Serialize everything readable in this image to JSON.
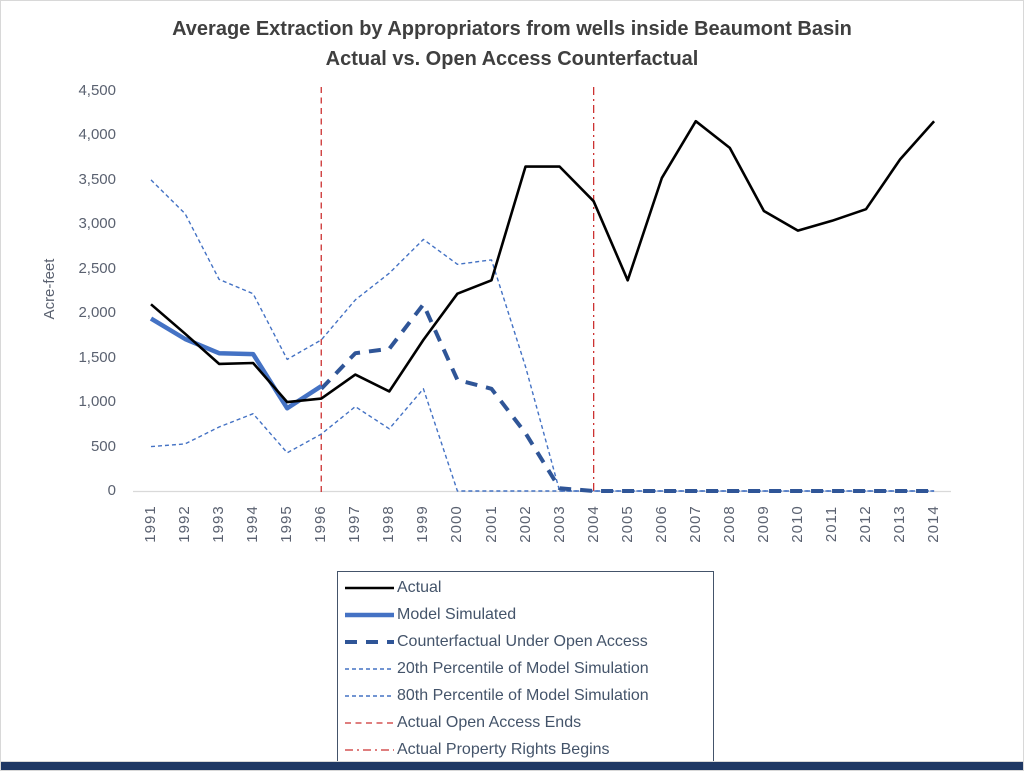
{
  "title": {
    "line1": "Average Extraction by Appropriators from wells inside Beaumont Basin",
    "line2": "Actual vs. Open Access Counterfactual"
  },
  "colors": {
    "accent_bar": "#1f3864",
    "legend_border": "#44546a",
    "legend_text": "#44546a",
    "axis_line": "#d9d9d9",
    "tick_text": "#5a6170",
    "title_text": "#3f3f3f"
  },
  "chart_data": {
    "type": "line",
    "title": "Average Extraction by Appropriators from wells inside Beaumont Basin — Actual vs. Open Access Counterfactual",
    "xlabel": "",
    "ylabel": "Acre-feet",
    "ylim": [
      0,
      4500
    ],
    "ytick_step": 500,
    "grid": false,
    "legend_position": "bottom",
    "x": [
      1991,
      1992,
      1993,
      1994,
      1995,
      1996,
      1997,
      1998,
      1999,
      2000,
      2001,
      2002,
      2003,
      2004,
      2005,
      2006,
      2007,
      2008,
      2009,
      2010,
      2011,
      2012,
      2013,
      2014
    ],
    "xticks": [
      "1991",
      "1992",
      "1993",
      "1994",
      "1995",
      "1996",
      "1997",
      "1998",
      "1999",
      "2000",
      "2001",
      "2002",
      "2003",
      "2004",
      "2005",
      "2006",
      "2007",
      "2008",
      "2009",
      "2010",
      "2011",
      "2012",
      "2013",
      "2014"
    ],
    "yticks": [
      "0",
      "500",
      "1,000",
      "1,500",
      "2,000",
      "2,500",
      "3,000",
      "3,500",
      "4,000",
      "4,500"
    ],
    "series": [
      {
        "name": "Actual",
        "color": "#000000",
        "style": "solid",
        "width": 2.6,
        "values": [
          2100,
          1770,
          1430,
          1440,
          1000,
          1040,
          1310,
          1120,
          1700,
          2220,
          2370,
          3650,
          3650,
          3260,
          2370,
          3520,
          4160,
          3860,
          3150,
          2930,
          3040,
          3170,
          3730,
          4160
        ]
      },
      {
        "name": "Model Simulated",
        "color": "#4472c4",
        "style": "solid",
        "width": 4.5,
        "values": [
          1940,
          1710,
          1550,
          1540,
          930,
          1180,
          null,
          null,
          null,
          null,
          null,
          null,
          null,
          null,
          null,
          null,
          null,
          null,
          null,
          null,
          null,
          null,
          null,
          null
        ]
      },
      {
        "name": "Counterfactual Under Open Access",
        "color": "#2f5597",
        "style": "dashed",
        "width": 4,
        "values": [
          null,
          null,
          null,
          null,
          null,
          1150,
          1550,
          1600,
          2100,
          1250,
          1150,
          650,
          30,
          0,
          0,
          0,
          0,
          0,
          0,
          0,
          0,
          0,
          0,
          0
        ]
      },
      {
        "name": "20th Percentile of Model Simulation",
        "color": "#4472c4",
        "style": "dashed-thin",
        "width": 1.4,
        "values": [
          500,
          530,
          720,
          870,
          430,
          640,
          950,
          700,
          1150,
          0,
          0,
          0,
          0,
          0,
          0,
          0,
          0,
          0,
          0,
          0,
          0,
          0,
          0,
          0
        ]
      },
      {
        "name": "80th Percentile of Model Simulation",
        "color": "#4472c4",
        "style": "dashed-thin",
        "width": 1.4,
        "values": [
          3500,
          3120,
          2380,
          2220,
          1480,
          1700,
          2150,
          2450,
          2830,
          2550,
          2600,
          1400,
          0,
          0,
          0,
          0,
          0,
          0,
          0,
          0,
          0,
          0,
          0,
          0
        ]
      }
    ],
    "vlines": [
      {
        "label": "Actual Open Access Ends",
        "x": 1996,
        "color": "#cc3232",
        "style": "vline-dashed"
      },
      {
        "label": "Actual Property Rights Begins",
        "x": 2004,
        "color": "#cc3232",
        "style": "dash-dot"
      }
    ]
  }
}
